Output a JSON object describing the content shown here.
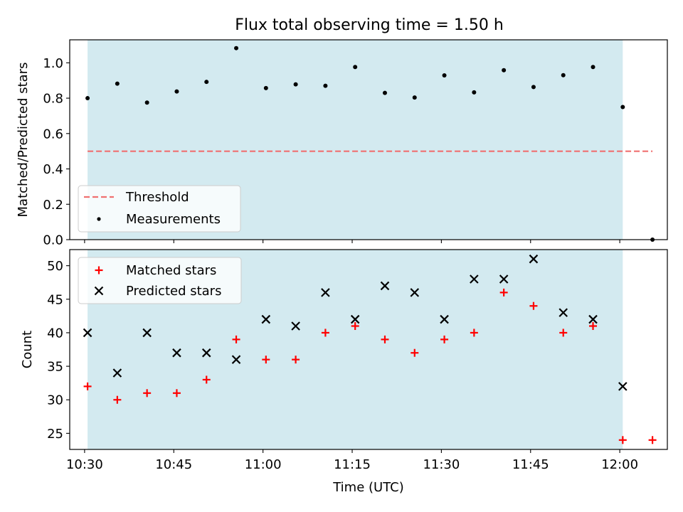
{
  "title": "Flux total observing time = 1.50 h",
  "colors": {
    "span": "#d3eaf0",
    "threshold": "#f07070",
    "matched": "#ff0000",
    "predicted": "#000000",
    "measurement": "#000000"
  },
  "chart_data": [
    {
      "type": "scatter",
      "ylabel": "Matched/Predicted stars",
      "ylim": [
        0,
        1.13
      ],
      "yticks": [
        0.0,
        0.2,
        0.4,
        0.6,
        0.8,
        1.0
      ],
      "ytick_labels": [
        "0.0",
        "0.2",
        "0.4",
        "0.6",
        "0.8",
        "1.0"
      ],
      "shaded_span": {
        "from": "10:30:30",
        "to": "12:00:30"
      },
      "threshold": {
        "value": 0.5,
        "from": "10:30:30",
        "to": "12:05:30"
      },
      "legend": {
        "placement": "lower-left",
        "entries": [
          "Threshold",
          "Measurements"
        ]
      },
      "series": [
        {
          "name": "Measurements",
          "marker": "dot",
          "x": [
            "10:30:30",
            "10:35:30",
            "10:40:30",
            "10:45:30",
            "10:50:30",
            "10:55:30",
            "11:00:30",
            "11:05:30",
            "11:10:30",
            "11:15:30",
            "11:20:30",
            "11:25:30",
            "11:30:30",
            "11:35:30",
            "11:40:30",
            "11:45:30",
            "11:50:30",
            "11:55:30",
            "12:00:30",
            "12:05:30"
          ],
          "values": [
            0.8,
            0.882,
            0.775,
            0.838,
            0.892,
            1.083,
            0.857,
            0.878,
            0.87,
            0.976,
            0.83,
            0.804,
            0.929,
            0.833,
            0.958,
            0.863,
            0.93,
            0.976,
            0.75,
            0.0
          ]
        }
      ]
    },
    {
      "type": "scatter",
      "xlabel": "Time (UTC)",
      "ylabel": "Count",
      "ylim": [
        22.6,
        52.4
      ],
      "yticks": [
        25,
        30,
        35,
        40,
        45,
        50
      ],
      "ytick_labels": [
        "25",
        "30",
        "35",
        "40",
        "45",
        "50"
      ],
      "xticks": [
        "10:30",
        "10:45",
        "11:00",
        "11:15",
        "11:30",
        "11:45",
        "12:00"
      ],
      "xlim": [
        "10:27:30",
        "12:08:00"
      ],
      "shaded_span": {
        "from": "10:30:30",
        "to": "12:00:30"
      },
      "legend": {
        "placement": "upper-left",
        "entries": [
          "Matched stars",
          "Predicted stars"
        ]
      },
      "series": [
        {
          "name": "Matched stars",
          "marker": "plus",
          "x": [
            "10:30:30",
            "10:35:30",
            "10:40:30",
            "10:45:30",
            "10:50:30",
            "10:55:30",
            "11:00:30",
            "11:05:30",
            "11:10:30",
            "11:15:30",
            "11:20:30",
            "11:25:30",
            "11:30:30",
            "11:35:30",
            "11:40:30",
            "11:45:30",
            "11:50:30",
            "11:55:30",
            "12:00:30",
            "12:05:30"
          ],
          "values": [
            32,
            30,
            31,
            31,
            33,
            39,
            36,
            36,
            40,
            41,
            39,
            37,
            39,
            40,
            46,
            44,
            40,
            41,
            24,
            24
          ]
        },
        {
          "name": "Predicted stars",
          "marker": "x",
          "x": [
            "10:30:30",
            "10:35:30",
            "10:40:30",
            "10:45:30",
            "10:50:30",
            "10:55:30",
            "11:00:30",
            "11:05:30",
            "11:10:30",
            "11:15:30",
            "11:20:30",
            "11:25:30",
            "11:30:30",
            "11:35:30",
            "11:40:30",
            "11:45:30",
            "11:50:30",
            "11:55:30",
            "12:00:30"
          ],
          "values": [
            40,
            34,
            40,
            37,
            37,
            36,
            42,
            41,
            46,
            42,
            47,
            46,
            42,
            48,
            48,
            51,
            43,
            42,
            32
          ]
        }
      ]
    }
  ]
}
